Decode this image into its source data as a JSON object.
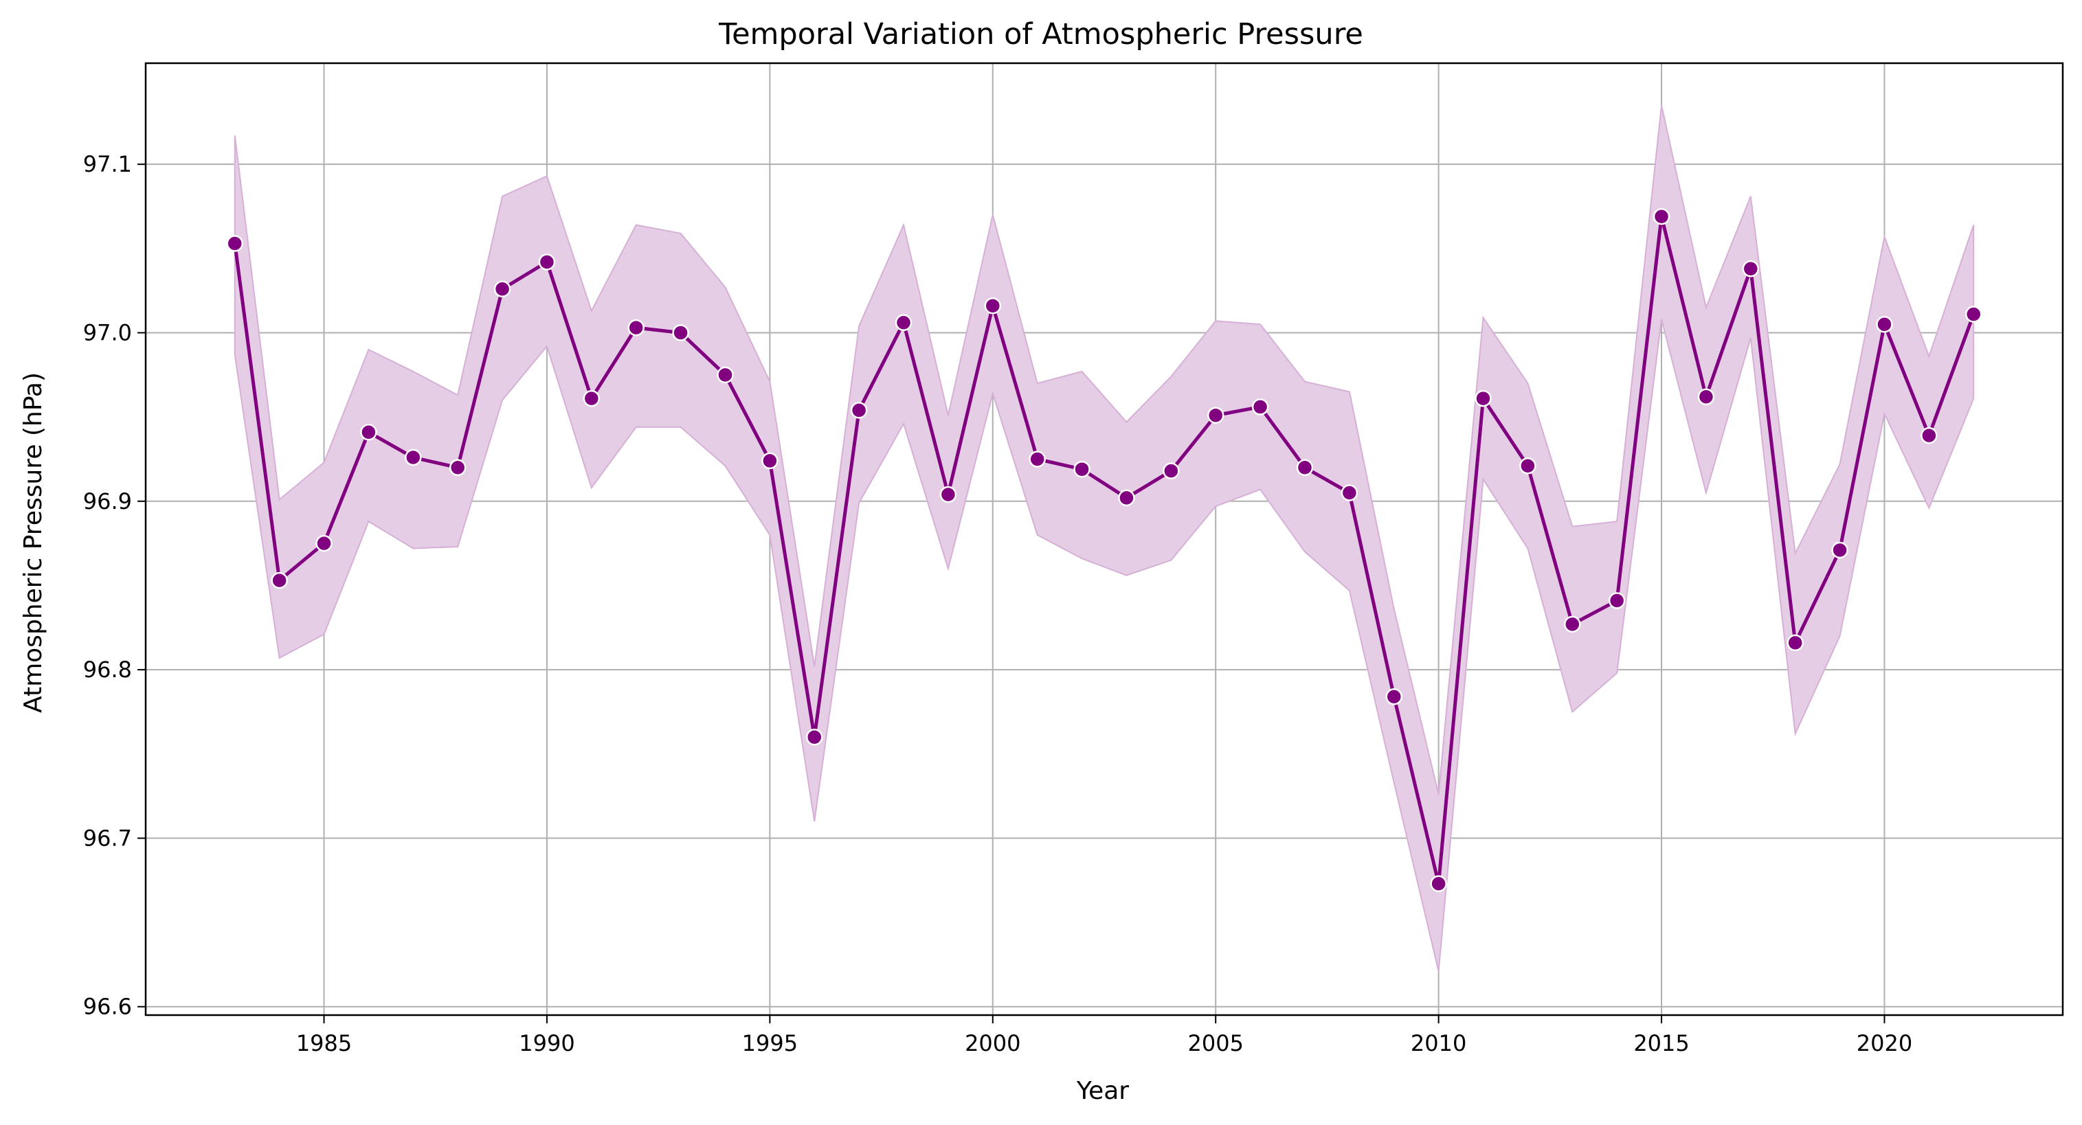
{
  "chart_data": {
    "type": "line",
    "title": "Temporal Variation of Atmospheric Pressure",
    "xlabel": "Year",
    "ylabel": "Atmospheric Pressure (hPa)",
    "xlim": [
      1981,
      2024
    ],
    "ylim": [
      96.595,
      97.16
    ],
    "x_ticks": [
      1985,
      1990,
      1995,
      2000,
      2005,
      2010,
      2015,
      2020
    ],
    "y_ticks": [
      96.6,
      96.7,
      96.8,
      96.9,
      97.0,
      97.1
    ],
    "y_tick_labels": [
      "96.6",
      "96.7",
      "96.8",
      "96.9",
      "97.0",
      "97.1"
    ],
    "grid": true,
    "colors": {
      "line": "#800080",
      "band": "#e5cde5",
      "band_edge": "#d6b0d6",
      "marker_edge": "#ffffff",
      "grid": "#b0b0b0"
    },
    "series": [
      {
        "x": [
          1983,
          1984,
          1985,
          1986,
          1987,
          1988,
          1989,
          1990,
          1991,
          1992,
          1993,
          1994,
          1995,
          1996,
          1997,
          1998,
          1999,
          2000,
          2001,
          2002,
          2003,
          2004,
          2005,
          2006,
          2007,
          2008,
          2009,
          2010,
          2011,
          2012,
          2013,
          2014,
          2015,
          2016,
          2017,
          2018,
          2019,
          2020,
          2021,
          2022
        ],
        "y": [
          97.053,
          96.853,
          96.875,
          96.941,
          96.926,
          96.92,
          97.026,
          97.042,
          96.961,
          97.003,
          97.0,
          96.975,
          96.924,
          96.76,
          96.954,
          97.006,
          96.904,
          97.016,
          96.925,
          96.919,
          96.902,
          96.918,
          96.951,
          96.956,
          96.92,
          96.905,
          96.784,
          96.673,
          96.961,
          96.921,
          96.827,
          96.841,
          97.069,
          96.962,
          97.038,
          96.816,
          96.871,
          97.005,
          96.939,
          97.011
        ],
        "ci_lower": [
          96.987,
          96.807,
          96.821,
          96.888,
          96.872,
          96.873,
          96.96,
          96.992,
          96.908,
          96.944,
          96.944,
          96.921,
          96.88,
          96.71,
          96.899,
          96.946,
          96.86,
          96.964,
          96.88,
          96.866,
          96.856,
          96.865,
          96.897,
          96.907,
          96.87,
          96.847,
          96.733,
          96.621,
          96.913,
          96.872,
          96.775,
          96.798,
          97.008,
          96.905,
          96.997,
          96.762,
          96.82,
          96.952,
          96.896,
          96.961
        ],
        "ci_upper": [
          97.117,
          96.901,
          96.923,
          96.99,
          96.977,
          96.963,
          97.081,
          97.093,
          97.013,
          97.064,
          97.059,
          97.027,
          96.971,
          96.802,
          97.004,
          97.064,
          96.951,
          97.07,
          96.97,
          96.977,
          96.947,
          96.974,
          97.007,
          97.005,
          96.971,
          96.965,
          96.836,
          96.726,
          97.009,
          96.97,
          96.885,
          96.888,
          97.135,
          97.015,
          97.081,
          96.869,
          96.922,
          97.057,
          96.986,
          97.064
        ]
      }
    ]
  }
}
